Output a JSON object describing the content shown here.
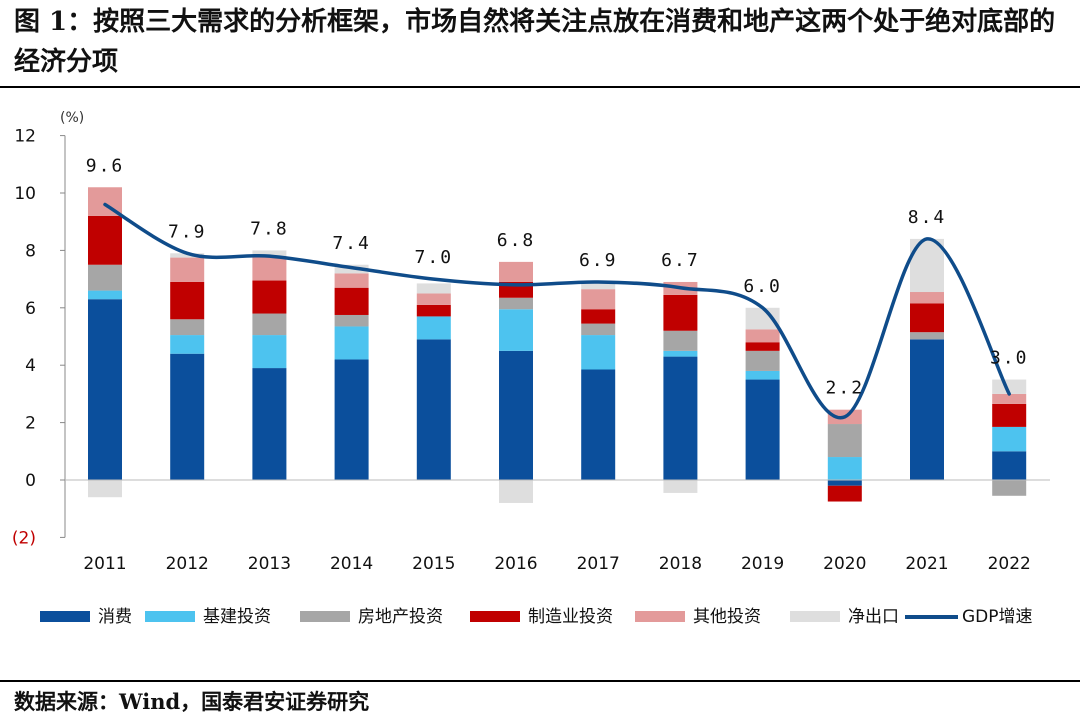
{
  "title": "图 1：按照三大需求的分析框架，市场自然将关注点放在消费和地产这两个处于绝对底部的经济分项",
  "source": "数据来源：Wind，国泰君安证券研究",
  "colors": {
    "consumption": "#0b4f9c",
    "infrastructure": "#4dc3ef",
    "real_estate": "#a6a6a6",
    "manufacturing": "#c00000",
    "other_investment": "#e39a9a",
    "net_exports": "#dedede",
    "gdp_line": "#0f4c8a",
    "negative_tick": "#c00000"
  },
  "chart_data": {
    "type": "bar",
    "stacked": true,
    "title": "",
    "ylabel": "(%)",
    "xlabel": "",
    "ylim": [
      -2,
      12
    ],
    "yticks": [
      -2,
      0,
      2,
      4,
      6,
      8,
      10,
      12
    ],
    "ytick_labels": [
      "(2)",
      "0",
      "2",
      "4",
      "6",
      "8",
      "10",
      "12"
    ],
    "categories": [
      "2011",
      "2012",
      "2013",
      "2014",
      "2015",
      "2016",
      "2017",
      "2018",
      "2019",
      "2020",
      "2021",
      "2022"
    ],
    "series": [
      {
        "key": "consumption",
        "name": "消费",
        "values": [
          6.3,
          4.4,
          3.9,
          4.2,
          4.9,
          4.5,
          3.85,
          4.3,
          3.5,
          -0.2,
          4.9,
          1.0
        ]
      },
      {
        "key": "infrastructure",
        "name": "基建投资",
        "values": [
          0.3,
          0.65,
          1.15,
          1.15,
          0.8,
          1.45,
          1.2,
          0.2,
          0.3,
          0.8,
          0.0,
          0.85
        ]
      },
      {
        "key": "real_estate",
        "name": "房地产投资",
        "values": [
          0.9,
          0.55,
          0.75,
          0.4,
          0.0,
          0.4,
          0.4,
          0.7,
          0.7,
          1.15,
          0.25,
          -0.55
        ]
      },
      {
        "key": "manufacturing",
        "name": "制造业投资",
        "values": [
          1.7,
          1.3,
          1.15,
          0.95,
          0.4,
          0.55,
          0.5,
          1.25,
          0.3,
          -0.55,
          1.0,
          0.8
        ]
      },
      {
        "key": "other_investment",
        "name": "其他投资",
        "values": [
          1.0,
          0.85,
          0.85,
          0.5,
          0.4,
          0.7,
          0.7,
          0.45,
          0.45,
          0.5,
          0.4,
          0.35
        ]
      },
      {
        "key": "net_exports",
        "name": "净出口",
        "values": [
          -0.6,
          0.15,
          0.2,
          0.3,
          0.35,
          -0.8,
          0.25,
          -0.45,
          0.75,
          0.0,
          1.85,
          0.5
        ]
      }
    ],
    "line": {
      "key": "gdp_line",
      "name": "GDP增速",
      "values": [
        9.6,
        7.9,
        7.8,
        7.4,
        7.0,
        6.8,
        6.9,
        6.7,
        6.0,
        2.2,
        8.4,
        3.0
      ]
    },
    "data_labels": [
      "9.6",
      "7.9",
      "7.8",
      "7.4",
      "7.0",
      "6.8",
      "6.9",
      "6.7",
      "6.0",
      "2.2",
      "8.4",
      "3.0"
    ],
    "legend_position": "bottom"
  }
}
